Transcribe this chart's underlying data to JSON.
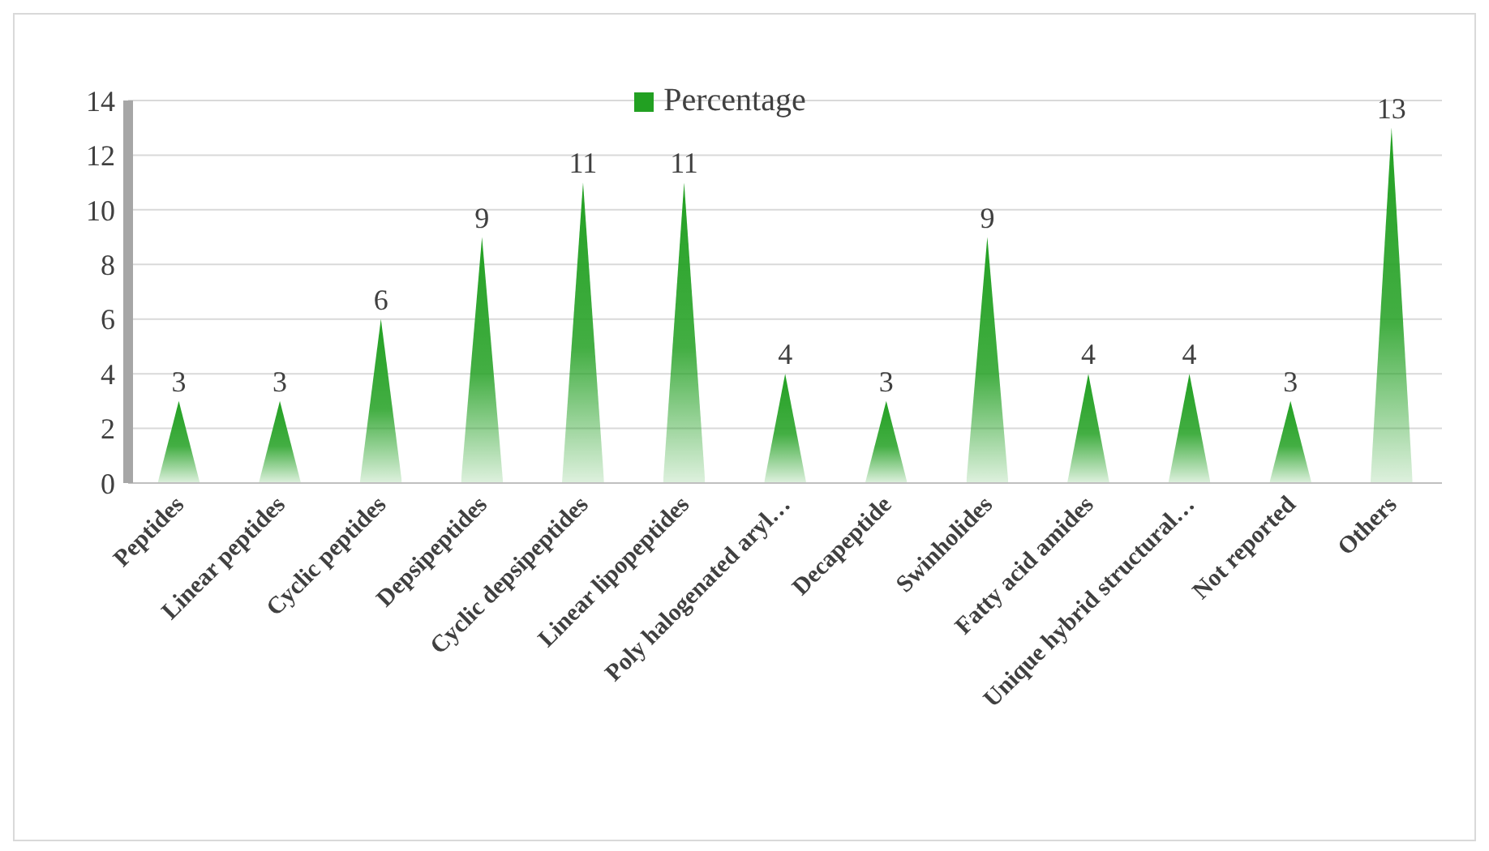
{
  "chart_data": {
    "type": "bar",
    "categories": [
      "Peptides",
      "Linear peptides",
      "Cyclic peptides",
      "Depsipeptides",
      "Cyclic depsipeptides",
      "Linear lipopeptides",
      "Poly halogenated aryl…",
      "Decapeptide",
      "Swinholides",
      "Fatty acid amides",
      "Unique hybrid structural…",
      "Not reported",
      "Others"
    ],
    "series": [
      {
        "name": "Percentage",
        "color": "#22a022",
        "values": [
          3,
          3,
          6,
          9,
          11,
          11,
          4,
          3,
          9,
          4,
          4,
          3,
          13
        ]
      }
    ],
    "ylim": [
      0,
      14
    ],
    "yticks": [
      0,
      2,
      4,
      6,
      8,
      10,
      12,
      14
    ],
    "grid": "y",
    "legend": "top",
    "data_labels": true
  }
}
